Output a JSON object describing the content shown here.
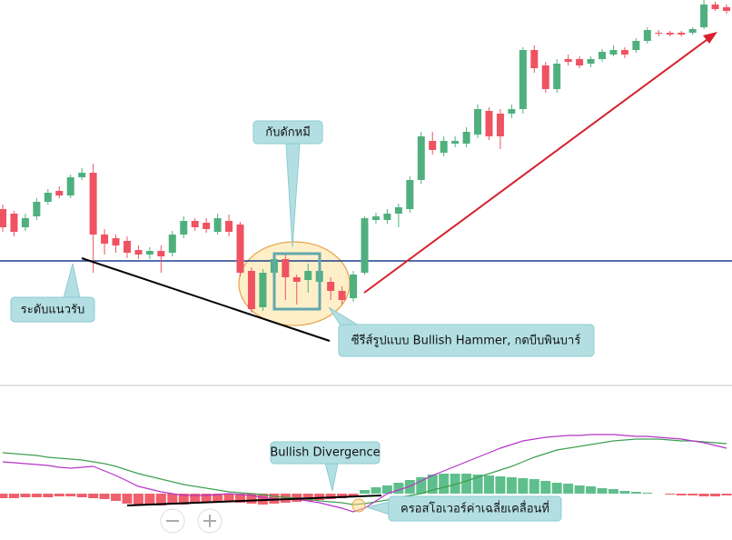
{
  "chart_data": [
    {
      "type": "candlestick",
      "up_color": "#4fb07e",
      "down_color": "#ef5362",
      "ylim": [
        0,
        430
      ],
      "support_level": 143,
      "support_color": "#1f3f8f",
      "open": [
        200,
        195,
        180,
        192,
        208,
        220,
        215,
        235,
        240,
        172,
        168,
        165,
        155,
        150,
        154,
        152,
        172,
        187,
        185,
        175,
        187,
        183,
        132,
        92,
        130,
        145,
        125,
        122,
        120,
        120,
        110,
        102,
        130,
        188,
        188,
        195,
        200,
        232,
        275,
        262,
        272,
        272,
        282,
        308,
        305,
        305,
        310,
        375,
        358,
        332,
        365,
        365,
        360,
        365,
        370,
        375,
        375,
        385,
        394,
        394,
        394,
        394,
        400,
        425,
        422
      ],
      "high": [
        205,
        198,
        195,
        212,
        222,
        225,
        238,
        245,
        250,
        178,
        172,
        170,
        160,
        158,
        160,
        176,
        192,
        190,
        190,
        195,
        194,
        186,
        136,
        134,
        150,
        150,
        128,
        140,
        135,
        125,
        115,
        132,
        192,
        196,
        200,
        206,
        236,
        285,
        285,
        280,
        280,
        290,
        315,
        312,
        310,
        315,
        378,
        380,
        362,
        365,
        370,
        368,
        368,
        376,
        380,
        378,
        388,
        400,
        397,
        396,
        396,
        400,
        430,
        428,
        425
      ],
      "low": [
        175,
        170,
        176,
        188,
        205,
        212,
        212,
        232,
        130,
        150,
        152,
        146,
        145,
        145,
        130,
        148,
        168,
        176,
        174,
        172,
        170,
        126,
        86,
        88,
        100,
        100,
        95,
        108,
        105,
        100,
        95,
        98,
        128,
        184,
        184,
        180,
        196,
        228,
        260,
        258,
        268,
        268,
        278,
        276,
        266,
        300,
        305,
        350,
        328,
        328,
        358,
        355,
        356,
        362,
        368,
        366,
        372,
        382,
        390,
        390,
        390,
        392,
        398,
        418,
        415
      ],
      "close": [
        180,
        175,
        190,
        208,
        218,
        215,
        235,
        240,
        172,
        162,
        160,
        152,
        150,
        154,
        148,
        172,
        187,
        180,
        178,
        190,
        175,
        130,
        90,
        130,
        145,
        125,
        120,
        132,
        132,
        110,
        100,
        128,
        190,
        192,
        195,
        202,
        232,
        280,
        265,
        275,
        275,
        285,
        310,
        280,
        280,
        310,
        375,
        355,
        332,
        360,
        362,
        358,
        365,
        373,
        375,
        370,
        385,
        397,
        393,
        392,
        392,
        398,
        425,
        420,
        418
      ],
      "annotations": [
        "กับดักหมี",
        "ระดับแนวรับ",
        "ซีรีส์รูปแบบ Bullish Hammer, กดบีบพินบาร์"
      ]
    },
    {
      "type": "macd",
      "ylim": [
        -51,
        118
      ],
      "histogram_up_color": "#5fbf8c",
      "histogram_down_color": "#f0606c",
      "macd_color": "#b535c8",
      "signal_color": "#3f9f50",
      "histogram": [
        -5,
        -5,
        -4,
        -4,
        -4,
        -3,
        -3,
        -4,
        -5,
        -6,
        -8,
        -11,
        -12,
        -13,
        -13,
        -12,
        -12,
        -11,
        -10,
        -9,
        -9,
        -10,
        -11,
        -12,
        -11,
        -10,
        -9,
        -8,
        -7,
        -6,
        -5,
        -4,
        4,
        7,
        9,
        12,
        15,
        18,
        21,
        22,
        22,
        22,
        21,
        20,
        19,
        18,
        17,
        16,
        14,
        12,
        11,
        9,
        8,
        6,
        5,
        3,
        2,
        1,
        0,
        -1,
        -2,
        -2,
        -3,
        -3,
        -2
      ],
      "macd": [
        35,
        34,
        33,
        32,
        31,
        29,
        28,
        29,
        30,
        25,
        20,
        14,
        8,
        5,
        2,
        0,
        -2,
        -2,
        -2,
        -1,
        0,
        -1,
        -2,
        -4,
        -6,
        -6,
        -6,
        -8,
        -10,
        -13,
        -16,
        -20,
        -16,
        -8,
        0,
        4,
        8,
        14,
        20,
        25,
        30,
        35,
        40,
        45,
        50,
        54,
        58,
        60,
        62,
        63,
        64,
        64,
        65,
        65,
        65,
        64,
        63,
        63,
        62,
        61,
        60,
        58,
        56,
        53,
        50
      ],
      "signal": [
        45,
        44,
        43,
        42,
        40,
        39,
        38,
        37,
        35,
        33,
        30,
        26,
        22,
        19,
        16,
        13,
        10,
        8,
        6,
        4,
        2,
        1,
        0,
        -1,
        -3,
        -4,
        -5,
        -6,
        -8,
        -9,
        -10,
        -12,
        -11,
        -9,
        -7,
        -4,
        -2,
        0,
        4,
        7,
        10,
        14,
        18,
        22,
        26,
        30,
        35,
        40,
        44,
        48,
        50,
        52,
        54,
        56,
        58,
        59,
        60,
        60,
        60,
        59,
        58,
        58,
        57,
        56,
        55
      ],
      "annotations": [
        "Bullish Divergence",
        "ครอสโอเวอร์ค่าเฉลี่ยเคลื่อนที่"
      ]
    }
  ]
}
